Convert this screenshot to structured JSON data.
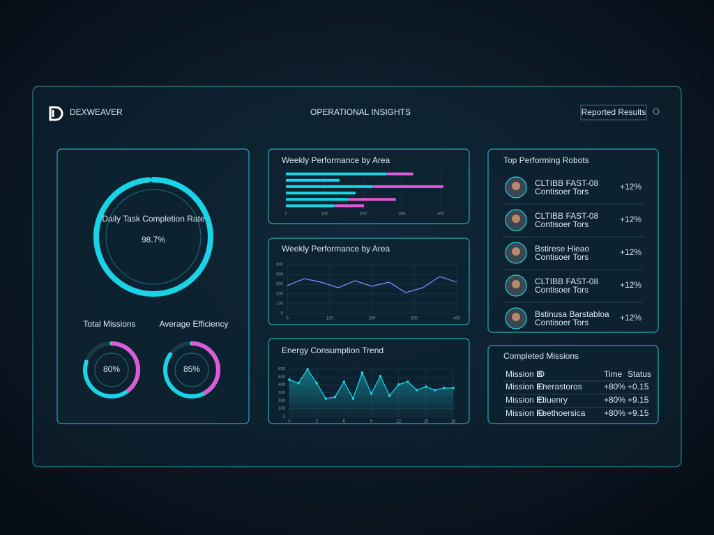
{
  "header": {
    "brand": "DEXWEAVER",
    "title": "OPERATIONAL INSIGHTS",
    "button": "Reported Results"
  },
  "gauges": [
    {
      "label": "Daily Task Completion Rate",
      "value": 98.7,
      "value_label": "98.7%"
    },
    {
      "label": "Total Missions",
      "value": 80,
      "value_label": "80%"
    },
    {
      "label": "Average Efficiency",
      "value": 85,
      "value_label": "85%"
    }
  ],
  "charts": [
    {
      "type": "bar",
      "title": "Weekly Performance by Area",
      "orientation": "horizontal",
      "stacked": true,
      "categories": [
        null,
        null,
        null,
        null,
        null,
        null
      ],
      "series": [
        {
          "color": "#19d3e6",
          "values": [
            261,
            139,
            225,
            180,
            162,
            126
          ]
        },
        {
          "color": "#e05ad8",
          "values": [
            68,
            0,
            182,
            0,
            122,
            76
          ]
        }
      ],
      "xlim": [
        0,
        400
      ],
      "xticks": [
        0,
        100,
        200,
        300,
        400
      ]
    },
    {
      "type": "line",
      "title": "Weekly Performance by Area",
      "x": [
        0,
        40,
        80,
        120,
        160,
        200,
        240,
        280,
        320,
        360,
        400
      ],
      "series": [
        {
          "color": "#7b8cff",
          "values": [
            286,
            357,
            321,
            264,
            336,
            279,
            321,
            214,
            264,
            379,
            321
          ]
        }
      ],
      "xlim": [
        0,
        400
      ],
      "xticks": [
        0,
        100,
        200,
        300,
        400
      ],
      "ylim": [
        0,
        500
      ],
      "yticks": [
        0,
        100,
        200,
        300,
        400,
        500
      ],
      "grid": true
    },
    {
      "type": "line",
      "title": "Energy Consumption Trend",
      "x": [
        0,
        1,
        2,
        3,
        4,
        5,
        6,
        7,
        8,
        9,
        10,
        11,
        12,
        13,
        14,
        15,
        16,
        17,
        18
      ],
      "series": [
        {
          "color": "#19d3e6",
          "values": [
            468,
            424,
            600,
            424,
            229,
            247,
            441,
            229,
            556,
            291,
            512,
            265,
            406,
            441,
            335,
            379,
            335,
            362,
            362
          ]
        }
      ],
      "xlim": [
        0,
        18
      ],
      "xticks": [
        0,
        3,
        6,
        9,
        12,
        15,
        18
      ],
      "ylim": [
        0,
        600
      ],
      "yticks": [
        0,
        100,
        200,
        300,
        400,
        500,
        600
      ],
      "grid": true,
      "area": true
    }
  ],
  "robots": {
    "title": "Top Performing Robots",
    "items": [
      {
        "name": "CLTIBB FAST-08",
        "subtitle": "Contisoer Tors",
        "change": "+12%"
      },
      {
        "name": "CLTIBB FAST-08",
        "subtitle": "Contisoer Tors",
        "change": "+12%"
      },
      {
        "name": "Bstirese Hieao",
        "subtitle": "Contisoer Tors",
        "change": "+12%"
      },
      {
        "name": "CLTIBB FAST-08",
        "subtitle": "Contisoer Tors",
        "change": "+12%"
      },
      {
        "name": "Bstinusa Barstabloa",
        "subtitle": "Contisoer Tors",
        "change": "+12%"
      }
    ]
  },
  "table": {
    "title": "Completed Missions",
    "header": [
      "Mission ID",
      "B",
      "Time",
      "Status"
    ],
    "rows": [
      [
        "Mission ID",
        "Enerastoros",
        "+80%",
        "+0.15"
      ],
      [
        "Mission ID",
        "Etiuenry",
        "+80%",
        "+9.15"
      ],
      [
        "Mission ID",
        "Foethoersica",
        "+80%",
        "+9.15"
      ]
    ]
  }
}
